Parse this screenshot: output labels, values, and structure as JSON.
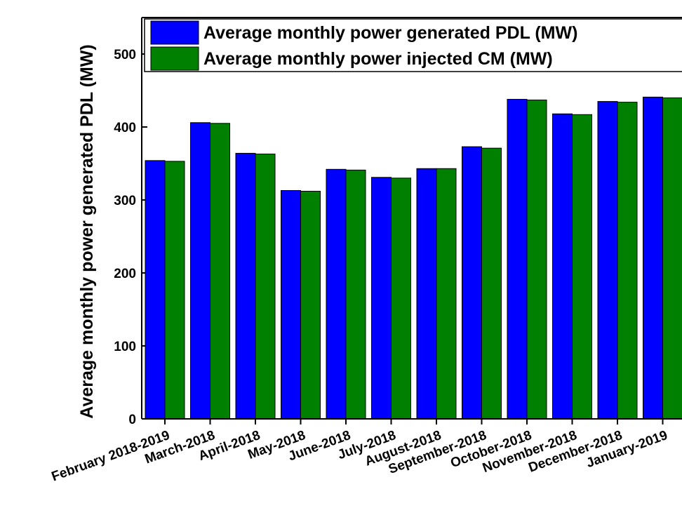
{
  "chart_data": {
    "type": "bar",
    "y_label": "Average monthly power generated PDL (MW)",
    "categories": [
      "February 2018-2019",
      "March-2018",
      "April-2018",
      "May-2018",
      "June-2018",
      "July-2018",
      "August-2018",
      "September-2018",
      "October-2018",
      "November-2018",
      "December-2018",
      "January-2019"
    ],
    "series": [
      {
        "name": "Average monthly power generated PDL (MW)",
        "color": "#0000ff",
        "values": [
          354,
          406,
          364,
          313,
          342,
          331,
          343,
          373,
          438,
          418,
          435,
          441
        ]
      },
      {
        "name": "Average monthly power injected CM (MW)",
        "color": "#008000",
        "values": [
          353,
          405,
          363,
          312,
          341,
          330,
          343,
          371,
          437,
          417,
          434,
          440
        ]
      }
    ],
    "ylim": [
      0,
      550
    ],
    "yticks": [
      0,
      100,
      200,
      300,
      400,
      500
    ],
    "legend": "upper left"
  }
}
